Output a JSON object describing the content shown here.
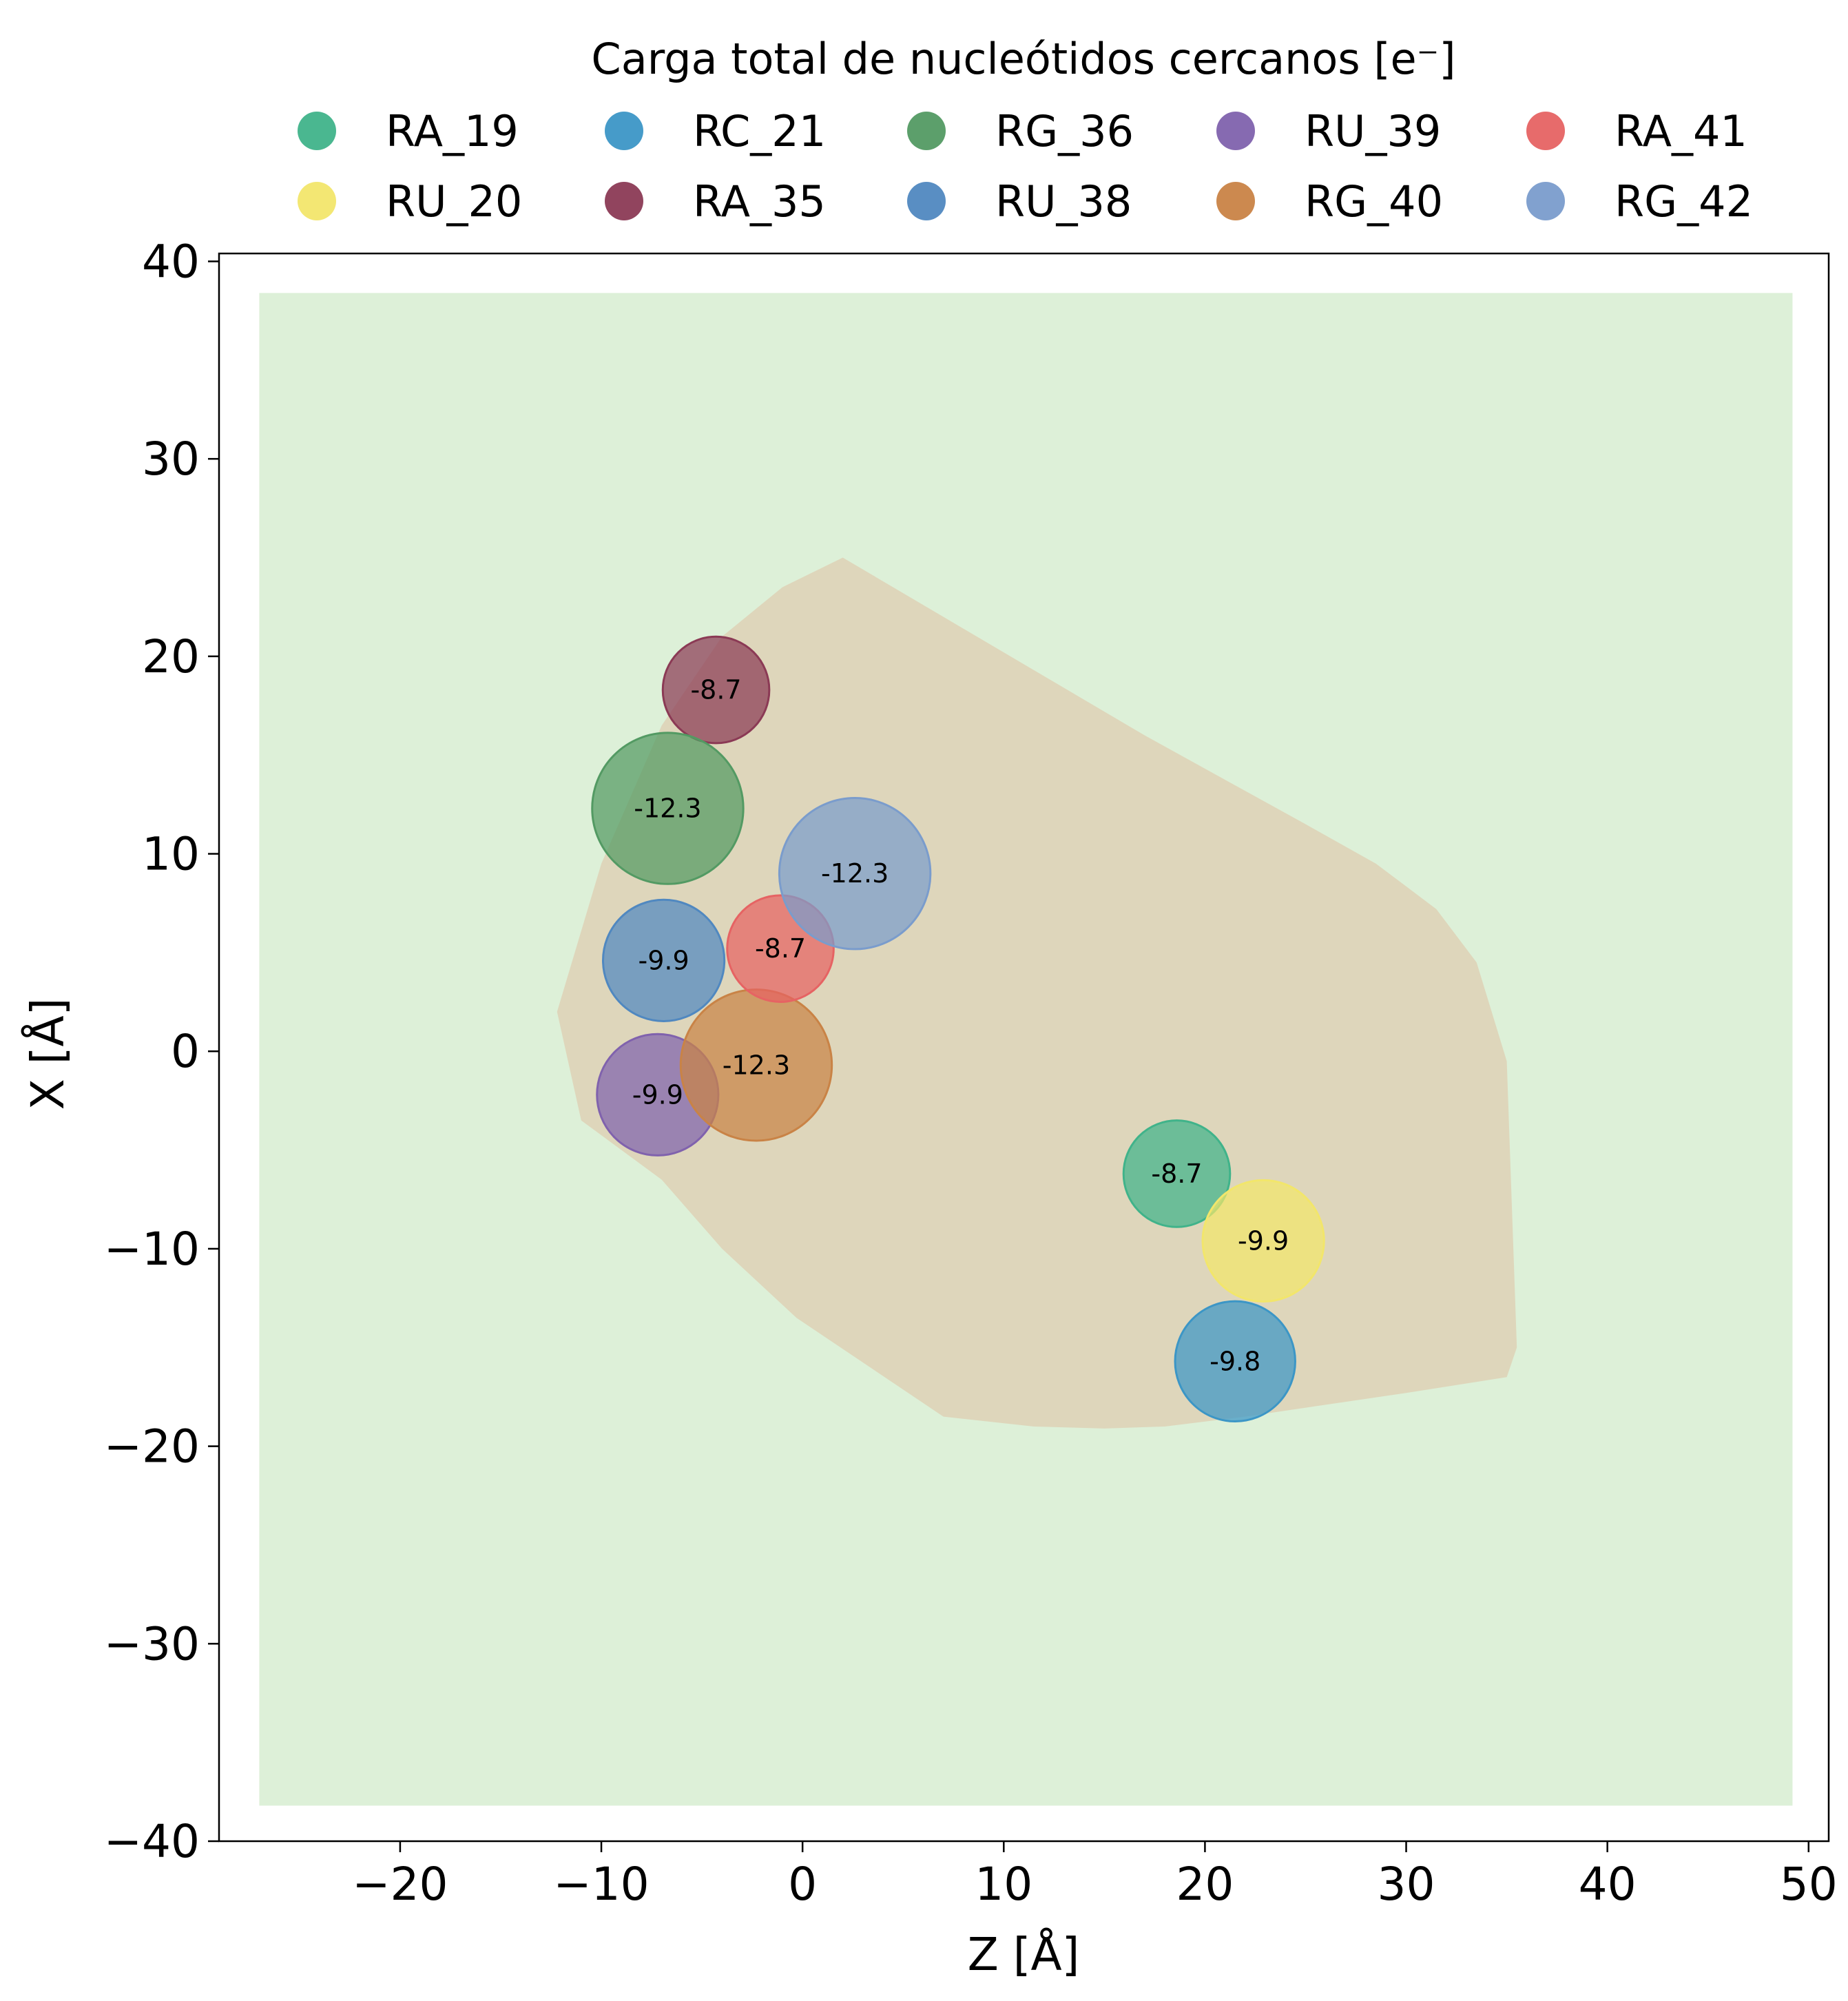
{
  "chart_data": {
    "type": "scatter",
    "xlabel": "Z [Å]",
    "ylabel": "X [Å]",
    "xlim": [
      -29,
      51
    ],
    "ylim": [
      -40,
      40.4
    ],
    "xticks": [
      -20,
      -10,
      0,
      10,
      20,
      30,
      40,
      50
    ],
    "yticks": [
      -40,
      -30,
      -20,
      -10,
      0,
      10,
      20,
      30,
      40
    ],
    "xtick_labels": [
      "−20",
      "−10",
      "0",
      "10",
      "20",
      "30",
      "40",
      "50"
    ],
    "ytick_labels": [
      "−40",
      "−30",
      "−20",
      "−10",
      "0",
      "10",
      "20",
      "30",
      "40"
    ],
    "grid": false,
    "legend": {
      "title": "Carga total de nucleótidos cercanos [e⁻]",
      "placement": "top-center",
      "columns": 5
    },
    "background_region": {
      "z": [
        -27,
        49.2
      ],
      "x": [
        -38.2,
        38.4
      ],
      "color": "#ddf0d8"
    },
    "contour_region": {
      "color": "#ded6bb",
      "outline": [
        [
          2,
          25
        ],
        [
          -1,
          23.5
        ],
        [
          -4,
          21
        ],
        [
          -7,
          16.5
        ],
        [
          -10,
          9.5
        ],
        [
          -12.2,
          2
        ],
        [
          -11,
          -3.5
        ],
        [
          -7,
          -6.5
        ],
        [
          -4,
          -10
        ],
        [
          -0.3,
          -13.5
        ],
        [
          7,
          -18.5
        ],
        [
          11.5,
          -19
        ],
        [
          15,
          -19.1
        ],
        [
          18,
          -19
        ],
        [
          22,
          -18.5
        ],
        [
          30,
          -17.3
        ],
        [
          35,
          -16.5
        ],
        [
          35.5,
          -15
        ],
        [
          35,
          -0.5
        ],
        [
          33.5,
          4.5
        ],
        [
          31.5,
          7.2
        ],
        [
          28.5,
          9.5
        ],
        [
          25,
          11.5
        ],
        [
          17,
          16
        ],
        [
          10,
          20.2
        ]
      ]
    },
    "series": [
      {
        "name": "RA_19",
        "color": "#40b38a",
        "z": 18.6,
        "x": -6.2,
        "value": -8.7,
        "label": "-8.7"
      },
      {
        "name": "RU_20",
        "color": "#f2e66b",
        "z": 22.9,
        "x": -9.6,
        "value": -9.9,
        "label": "-9.9"
      },
      {
        "name": "RC_21",
        "color": "#3c96c6",
        "z": 21.5,
        "x": -15.7,
        "value": -9.8,
        "label": "-9.8"
      },
      {
        "name": "RA_35",
        "color": "#8b3a55",
        "z": -4.3,
        "x": 18.3,
        "value": -8.7,
        "label": "-8.7"
      },
      {
        "name": "RG_36",
        "color": "#539a63",
        "z": -6.7,
        "x": 12.3,
        "value": -12.3,
        "label": "-12.3"
      },
      {
        "name": "RU_38",
        "color": "#5088c0",
        "z": -6.9,
        "x": 4.6,
        "value": -9.9,
        "label": "-9.9"
      },
      {
        "name": "RU_39",
        "color": "#8062ad",
        "z": -7.2,
        "x": -2.2,
        "value": -9.9,
        "label": "-9.9"
      },
      {
        "name": "RG_40",
        "color": "#c98346",
        "z": -2.3,
        "x": -0.7,
        "value": -12.3,
        "label": "-12.3"
      },
      {
        "name": "RA_41",
        "color": "#e66363",
        "z": -1.1,
        "x": 5.2,
        "value": -8.7,
        "label": "-8.7"
      },
      {
        "name": "RG_42",
        "color": "#7a9ccc",
        "z": 2.6,
        "x": 9.0,
        "value": -12.3,
        "label": "-12.3"
      }
    ]
  }
}
